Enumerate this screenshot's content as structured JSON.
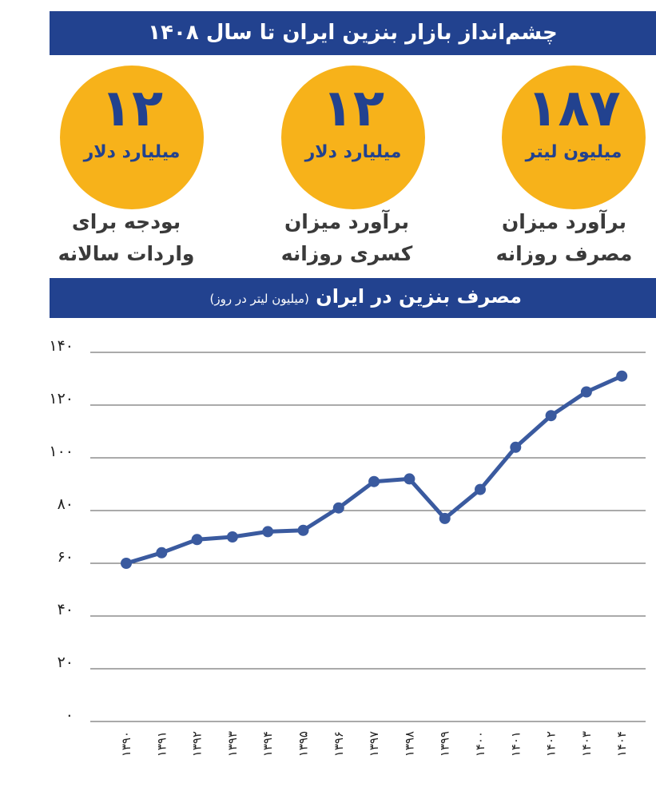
{
  "header": {
    "title": "چشم‌انداز بازار بنزین ایران تا سال ۱۴۰۸"
  },
  "stats": [
    {
      "value": "۱۸۷",
      "unit": "میلیون لیتر",
      "caption_line1": "برآورد میزان",
      "caption_line2": "مصرف روزانه"
    },
    {
      "value": "۱۲",
      "unit": "میلیارد دلار",
      "caption_line1": "برآورد میزان",
      "caption_line2": "کسری روزانه"
    },
    {
      "value": "۱۲",
      "unit": "میلیارد دلار",
      "caption_line1": "بودجه برای",
      "caption_line2": "واردات سالانه"
    }
  ],
  "chart_header": {
    "title": "مصرف بنزین در ایران",
    "subtitle": "(میلیون لیتر در روز)"
  },
  "colors": {
    "banner": "#22428f",
    "badge": "#f7b21a",
    "line": "#3a5a9f",
    "badge_text": "#22428f"
  },
  "chart_data": {
    "type": "line",
    "title": "مصرف بنزین در ایران",
    "ylabel": "(میلیون لیتر در روز)",
    "xlabel": "",
    "categories": [
      "۱۳۹۰",
      "۱۳۹۱",
      "۱۳۹۲",
      "۱۳۹۳",
      "۱۳۹۴",
      "۱۳۹۵",
      "۱۳۹۶",
      "۱۳۹۷",
      "۱۳۹۸",
      "۱۳۹۹",
      "۱۴۰۰",
      "۱۴۰۱",
      "۱۴۰۲",
      "۱۴۰۳",
      "۱۴۰۴"
    ],
    "values": [
      60,
      64,
      69,
      70,
      72,
      72.5,
      81,
      91,
      92,
      77,
      88,
      104,
      116,
      125,
      131
    ],
    "ylim": [
      0,
      140
    ],
    "yticks": [
      0,
      20,
      40,
      60,
      80,
      100,
      120,
      140
    ],
    "ytick_labels": [
      "۰",
      "۲۰",
      "۴۰",
      "۶۰",
      "۸۰",
      "۱۰۰",
      "۱۲۰",
      "۱۴۰"
    ],
    "grid": true
  }
}
